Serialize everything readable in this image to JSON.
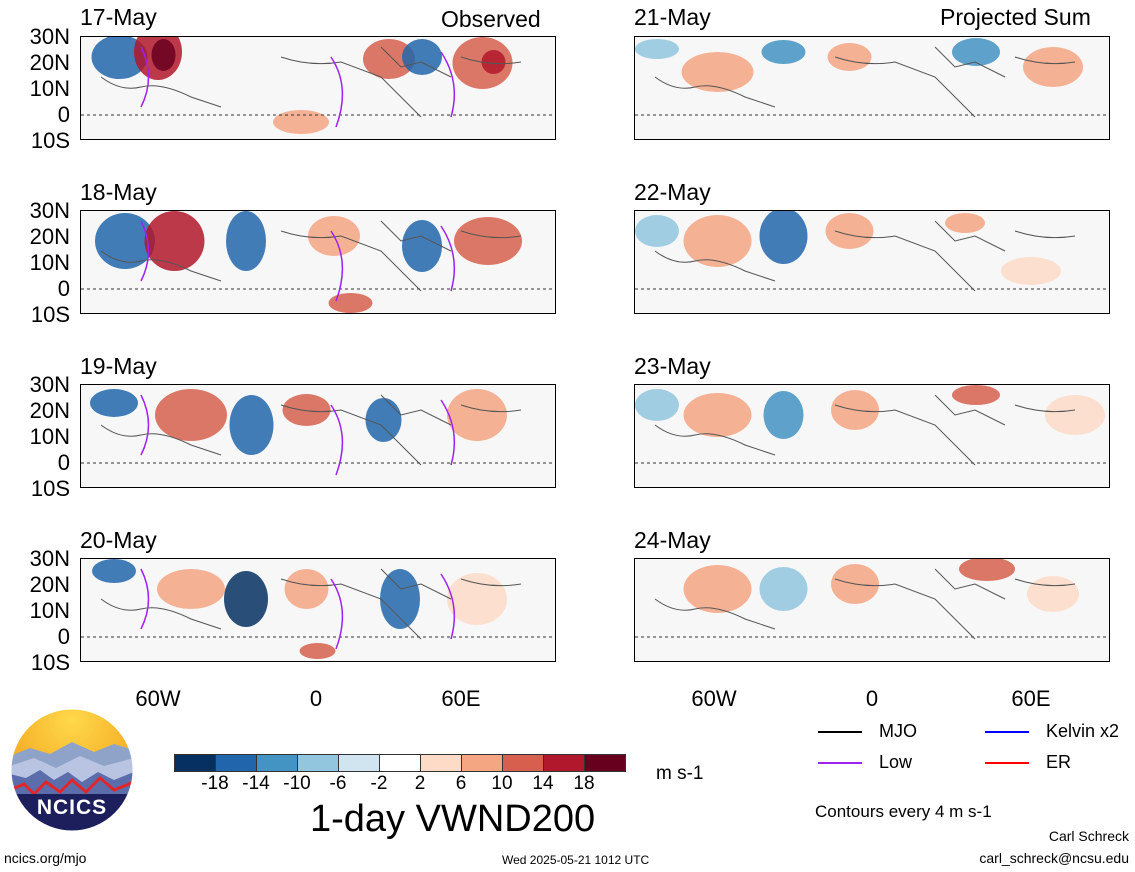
{
  "titles": {
    "left": "Observed",
    "right": "Projected Sum"
  },
  "panels": [
    {
      "date": "17-May",
      "column": "left",
      "row": 0
    },
    {
      "date": "18-May",
      "column": "left",
      "row": 1
    },
    {
      "date": "19-May",
      "column": "left",
      "row": 2
    },
    {
      "date": "20-May",
      "column": "left",
      "row": 3
    },
    {
      "date": "21-May",
      "column": "right",
      "row": 0
    },
    {
      "date": "22-May",
      "column": "right",
      "row": 1
    },
    {
      "date": "23-May",
      "column": "right",
      "row": 2
    },
    {
      "date": "24-May",
      "column": "right",
      "row": 3
    }
  ],
  "lat_labels": [
    "30N",
    "20N",
    "10N",
    "0",
    "10S"
  ],
  "lon_labels": [
    "60W",
    "0",
    "60E"
  ],
  "colorbar": {
    "ticks": [
      "-18",
      "-14",
      "-10",
      "-6",
      "-2",
      "2",
      "6",
      "10",
      "14",
      "18"
    ],
    "colors": [
      "#053061",
      "#2166ac",
      "#4393c3",
      "#92c5de",
      "#d1e5f0",
      "#ffffff",
      "#fddbc7",
      "#f4a582",
      "#d6604d",
      "#b2182b",
      "#67001f"
    ],
    "units": "m s-1"
  },
  "main_title": "1-day VWND200",
  "legend": [
    {
      "label": "MJO",
      "color": "#000000"
    },
    {
      "label": "Kelvin x2",
      "color": "#0000ff"
    },
    {
      "label": "Low",
      "color": "#a020f0"
    },
    {
      "label": "ER",
      "color": "#ff0000"
    }
  ],
  "contour_note": "Contours every 4 m s-1",
  "logo_text": "NCICS",
  "url": "ncics.org/mjo",
  "timestamp": "Wed 2025-05-21 1012 UTC",
  "author": "Carl Schreck",
  "email": "carl_schreck@ncsu.edu"
}
